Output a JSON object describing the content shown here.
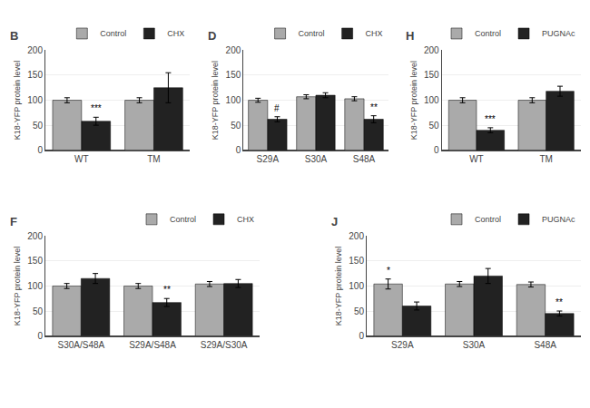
{
  "chart_data": [
    {
      "type": "bar",
      "title": "B",
      "y_label": "K18-YFP protein level",
      "categories": [
        "WT",
        "TM"
      ],
      "series": [
        {
          "name": "Control",
          "color": "#aaaaaa",
          "values": [
            100,
            100
          ],
          "errors": [
            5,
            5
          ]
        },
        {
          "name": "CHX",
          "color": "#222222",
          "values": [
            58,
            125
          ],
          "errors": [
            8,
            30
          ]
        }
      ],
      "ylim": [
        0,
        200
      ],
      "yticks": [
        0,
        50,
        100,
        150,
        200
      ],
      "legend": "upper right",
      "annotations": [
        {
          "text": "***",
          "category": "WT",
          "series": "CHX"
        }
      ]
    },
    {
      "type": "bar",
      "title": "D",
      "y_label": "K18-YFP protein level",
      "categories": [
        "S29A",
        "S30A",
        "S48A"
      ],
      "series": [
        {
          "name": "Control",
          "color": "#aaaaaa",
          "values": [
            100,
            107,
            103
          ],
          "errors": [
            4,
            4,
            4
          ]
        },
        {
          "name": "CHX",
          "color": "#222222",
          "values": [
            62,
            110,
            62
          ],
          "errors": [
            5,
            5,
            7
          ]
        }
      ],
      "ylim": [
        0,
        200
      ],
      "yticks": [
        0,
        50,
        100,
        150,
        200
      ],
      "legend": "upper right",
      "annotations": [
        {
          "text": "#",
          "category": "S29A",
          "series": "CHX"
        },
        {
          "text": "**",
          "category": "S48A",
          "series": "CHX"
        }
      ]
    },
    {
      "type": "bar",
      "title": "H",
      "y_label": "K18-YFP protein level",
      "categories": [
        "WT",
        "TM"
      ],
      "series": [
        {
          "name": "Control",
          "color": "#aaaaaa",
          "values": [
            100,
            100
          ],
          "errors": [
            5,
            5
          ]
        },
        {
          "name": "PUGNAc",
          "color": "#222222",
          "values": [
            40,
            118
          ],
          "errors": [
            5,
            10
          ]
        }
      ],
      "ylim": [
        0,
        200
      ],
      "yticks": [
        0,
        50,
        100,
        150,
        200
      ],
      "legend": "upper right",
      "annotations": [
        {
          "text": "***",
          "category": "WT",
          "series": "PUGNAc"
        }
      ]
    },
    {
      "type": "bar",
      "title": "F",
      "y_label": "K18-YFP protein level",
      "categories": [
        "S30A/S48A",
        "S29A/S48A",
        "S29A/S30A"
      ],
      "series": [
        {
          "name": "Control",
          "color": "#aaaaaa",
          "values": [
            100,
            100,
            104
          ],
          "errors": [
            5,
            5,
            5
          ]
        },
        {
          "name": "CHX",
          "color": "#222222",
          "values": [
            115,
            67,
            105
          ],
          "errors": [
            10,
            8,
            8
          ]
        }
      ],
      "ylim": [
        0,
        200
      ],
      "yticks": [
        0,
        50,
        100,
        150,
        200
      ],
      "legend": "upper right",
      "annotations": [
        {
          "text": "**",
          "category": "S29A/S48A",
          "series": "CHX"
        }
      ]
    },
    {
      "type": "bar",
      "title": "J",
      "y_label": "K18-YFP protein level",
      "categories": [
        "S29A",
        "S30A",
        "S48A"
      ],
      "series": [
        {
          "name": "Control",
          "color": "#aaaaaa",
          "values": [
            104,
            104,
            103
          ],
          "errors": [
            10,
            5,
            5
          ]
        },
        {
          "name": "PUGNAc",
          "color": "#222222",
          "values": [
            60,
            120,
            45
          ],
          "errors": [
            8,
            15,
            5
          ]
        }
      ],
      "ylim": [
        0,
        200
      ],
      "yticks": [
        0,
        50,
        100,
        150,
        200
      ],
      "legend": "upper right",
      "annotations": [
        {
          "text": "*",
          "category": "S29A",
          "series": "Control"
        },
        {
          "text": "**",
          "category": "S48A",
          "series": "PUGNAc"
        }
      ]
    }
  ]
}
